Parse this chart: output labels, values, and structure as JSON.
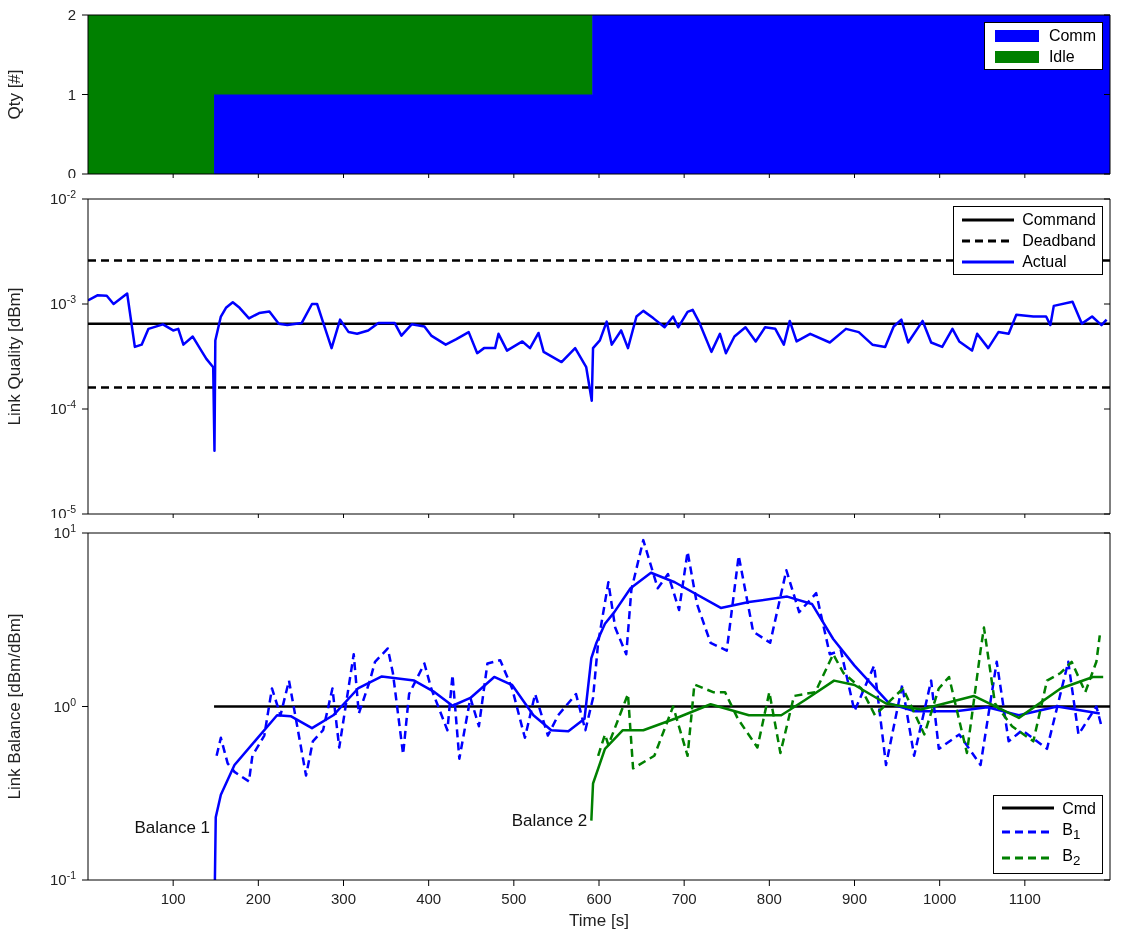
{
  "chart_data": [
    {
      "type": "area",
      "stacked": true,
      "ylabel": "Qty [#]",
      "x": [
        0,
        148,
        148,
        592,
        592,
        1200
      ],
      "xlim": [
        0,
        1200
      ],
      "xticks": [
        100,
        200,
        300,
        400,
        500,
        600,
        700,
        800,
        900,
        1000,
        1100
      ],
      "ylim": [
        0,
        2
      ],
      "yticks": [
        0,
        1,
        2
      ],
      "tick_labels": "y",
      "legend": "top right",
      "series": [
        {
          "name": "Comm",
          "color": "#0000ff",
          "values": [
            0,
            0,
            1,
            1,
            2,
            2
          ]
        },
        {
          "name": "Idle",
          "color": "#008000",
          "values": [
            2,
            2,
            1,
            1,
            null,
            null
          ]
        }
      ]
    },
    {
      "type": "line",
      "log": "y",
      "ylabel": "Link Quality [dBm]",
      "xlim": [
        0,
        1200
      ],
      "xticks": [
        100,
        200,
        300,
        400,
        500,
        600,
        700,
        800,
        900,
        1000,
        1100
      ],
      "ylim": [
        1e-05,
        0.01
      ],
      "yticks": [
        {
          "value": 1e-05,
          "label": "10$^{-5}$"
        },
        {
          "value": 0.0001,
          "label": "10$^{-4}$"
        },
        {
          "value": 0.001,
          "label": "10$^{-3}$"
        },
        {
          "value": 0.01,
          "label": "10$^{-2}$"
        }
      ],
      "tick_labels": "y",
      "legend": "top right",
      "series": [
        {
          "name": "Command",
          "color": "#000000",
          "line_style": "solid",
          "x": [
            0,
            1200
          ],
          "values": [
            0.00065,
            0.00065
          ]
        },
        {
          "name": "Deadband",
          "color": "#000000",
          "line_style": "dashed",
          "x": [
            0,
            1200
          ],
          "values": [
            0.0026,
            0.0026
          ]
        },
        {
          "color": "#000000",
          "line_style": "dashed",
          "x": [
            0,
            1200
          ],
          "values": [
            0.00016,
            0.00016
          ]
        },
        {
          "name": "Actual",
          "color": "#0000ff",
          "line_style": "solid",
          "x": [
            0,
            11,
            22,
            30,
            38,
            46,
            55,
            63,
            71,
            88,
            100,
            106,
            112,
            123,
            133,
            139,
            147,
            148.5,
            149.5,
            156,
            162,
            170,
            178,
            189,
            201,
            213,
            224,
            234,
            251,
            263,
            269,
            275,
            286,
            296,
            306,
            316,
            329,
            341,
            360,
            368,
            380,
            395,
            403,
            420,
            432,
            447,
            457,
            465,
            478,
            482,
            492,
            510,
            519,
            529,
            535,
            556,
            572,
            585,
            591.5,
            593,
            601,
            609,
            615,
            626,
            634,
            644,
            652,
            664,
            677,
            687,
            693,
            704,
            710,
            718,
            732,
            742,
            749,
            759,
            772,
            784,
            795,
            807,
            817,
            824,
            832,
            848,
            871,
            890,
            905,
            921,
            936,
            946,
            955,
            963,
            980,
            990,
            1003,
            1015,
            1023,
            1038,
            1044,
            1057,
            1069,
            1081,
            1090,
            1110,
            1125,
            1130,
            1134,
            1156,
            1167,
            1179,
            1190,
            1196
          ],
          "values": [
            0.00108,
            0.00121,
            0.0012,
            0.001,
            0.00112,
            0.00126,
            0.00039,
            0.00041,
            0.00058,
            0.00064,
            0.00056,
            0.00058,
            0.00041,
            0.00049,
            0.00036,
            0.0003,
            0.00025,
            4e-05,
            0.00045,
            0.00076,
            0.00092,
            0.00104,
            0.00092,
            0.00073,
            0.00082,
            0.00085,
            0.00065,
            0.00063,
            0.00066,
            0.001,
            0.001,
            0.00071,
            0.00038,
            0.00071,
            0.00054,
            0.00052,
            0.00056,
            0.00066,
            0.00066,
            0.0005,
            0.00064,
            0.00061,
            0.0005,
            0.00041,
            0.00046,
            0.00054,
            0.00034,
            0.00038,
            0.00038,
            0.00052,
            0.00036,
            0.00044,
            0.00038,
            0.00053,
            0.00035,
            0.00028,
            0.00038,
            0.00025,
            0.00012,
            0.00038,
            0.00045,
            0.00068,
            0.00041,
            0.00056,
            0.00038,
            0.00076,
            0.00086,
            0.00073,
            0.0006,
            0.00076,
            0.0006,
            0.00084,
            0.00088,
            0.00066,
            0.00035,
            0.00052,
            0.00034,
            0.00049,
            0.0006,
            0.00044,
            0.0006,
            0.00058,
            0.00041,
            0.00069,
            0.00044,
            0.00052,
            0.00043,
            0.00058,
            0.00054,
            0.00041,
            0.00039,
            0.00061,
            0.00071,
            0.00043,
            0.00069,
            0.00043,
            0.00039,
            0.00058,
            0.00044,
            0.00036,
            0.00052,
            0.00038,
            0.00054,
            0.00052,
            0.00079,
            0.00076,
            0.00076,
            0.00063,
            0.00096,
            0.00105,
            0.00065,
            0.00076,
            0.00063,
            0.00071
          ]
        }
      ]
    },
    {
      "type": "line",
      "log": "y",
      "xlabel": "Time [s]",
      "ylabel": "Link Balance [dBm/dBm]",
      "xlim": [
        0,
        1200
      ],
      "xticks": [
        100,
        200,
        300,
        400,
        500,
        600,
        700,
        800,
        900,
        1000,
        1100
      ],
      "ylim": [
        0.1,
        10
      ],
      "yticks": [
        {
          "value": 0.1,
          "label": "10$^{-1}$"
        },
        {
          "value": 1,
          "label": "10$^{0}$"
        },
        {
          "value": 10,
          "label": "10$^{1}$"
        }
      ],
      "legend": "bottom right",
      "annotations": [
        {
          "text": "Balance 1",
          "x": 148,
          "y": 0.2
        },
        {
          "text": "Balance 2",
          "x": 591,
          "y": 0.22
        }
      ],
      "series": [
        {
          "name": "Cmd",
          "color": "#000000",
          "line_style": "solid",
          "x": [
            148,
            1200
          ],
          "values": [
            1,
            1
          ]
        },
        {
          "name": "B$_{1}$",
          "color": "#0000ff",
          "line_style": "dashed",
          "x": [
            151,
            156,
            164,
            172,
            189,
            193,
            207,
            216,
            226,
            236,
            243,
            256,
            264,
            276,
            287,
            295,
            312,
            318,
            331,
            337,
            352,
            358,
            370,
            377,
            395,
            403,
            422,
            428,
            436,
            449,
            459,
            469,
            484,
            498,
            513,
            525,
            540,
            552,
            573,
            584,
            593,
            599,
            611,
            619,
            632,
            638,
            652,
            669,
            681,
            694,
            704,
            715,
            731,
            750,
            764,
            781,
            801,
            820,
            835,
            855,
            871,
            884,
            900,
            923,
            937,
            956,
            970,
            990,
            999,
            1023,
            1048,
            1067,
            1081,
            1097,
            1126,
            1151,
            1163,
            1184,
            1190
          ],
          "values": [
            0.52,
            0.66,
            0.47,
            0.42,
            0.37,
            0.52,
            0.68,
            1.27,
            0.89,
            1.41,
            0.91,
            0.4,
            0.63,
            0.73,
            1.27,
            0.58,
            2.0,
            0.91,
            1.41,
            1.81,
            2.16,
            1.56,
            0.53,
            1.18,
            1.77,
            1.27,
            0.73,
            1.52,
            0.5,
            1.12,
            0.77,
            1.77,
            1.85,
            1.27,
            0.66,
            1.18,
            0.68,
            0.89,
            1.18,
            0.73,
            1.12,
            2.33,
            5.2,
            2.85,
            2.0,
            4.7,
            9.1,
            4.8,
            5.8,
            3.6,
            7.8,
            3.9,
            2.33,
            2.1,
            7.4,
            2.7,
            2.33,
            6.1,
            3.5,
            4.5,
            2.0,
            2.1,
            0.94,
            1.72,
            0.46,
            1.33,
            0.52,
            1.41,
            0.57,
            0.69,
            0.46,
            1.81,
            0.63,
            0.73,
            0.57,
            1.81,
            0.69,
            1.0,
            0.77
          ]
        },
        {
          "color": "#0000ff",
          "line_style": "solid",
          "x": [
            149,
            150,
            156,
            172,
            197,
            222,
            238,
            263,
            288,
            317,
            345,
            383,
            407,
            428,
            449,
            477,
            498,
            523,
            544,
            564,
            583,
            591,
            597,
            607,
            618,
            637,
            661,
            689,
            743,
            776,
            821,
            850,
            875,
            900,
            941,
            970,
            1019,
            1056,
            1093,
            1138,
            1188
          ],
          "values": [
            0.1,
            0.23,
            0.31,
            0.46,
            0.64,
            0.89,
            0.88,
            0.75,
            0.89,
            1.27,
            1.49,
            1.41,
            1.21,
            1.01,
            1.12,
            1.48,
            1.33,
            0.89,
            0.73,
            0.72,
            0.85,
            1.9,
            2.33,
            3.0,
            3.5,
            4.8,
            5.9,
            5.2,
            3.7,
            4.0,
            4.3,
            3.9,
            2.45,
            1.72,
            1.04,
            0.94,
            0.94,
            0.99,
            0.89,
            1.0,
            0.91
          ]
        },
        {
          "name": "B$_{2}$",
          "color": "#008000",
          "line_style": "dashed",
          "x": [
            599,
            607,
            611,
            634,
            640,
            665,
            687,
            704,
            712,
            734,
            748,
            763,
            786,
            800,
            813,
            829,
            854,
            875,
            887,
            908,
            924,
            957,
            982,
            999,
            1011,
            1032,
            1048,
            1052,
            1065,
            1085,
            1110,
            1126,
            1142,
            1155,
            1171,
            1184,
            1188
          ],
          "values": [
            0.52,
            0.69,
            0.6,
            1.18,
            0.44,
            0.52,
            1.0,
            0.52,
            1.34,
            1.21,
            1.21,
            0.85,
            0.58,
            1.21,
            0.54,
            1.15,
            1.21,
            2.0,
            1.56,
            1.27,
            0.89,
            1.27,
            0.69,
            1.27,
            1.48,
            0.54,
            2.1,
            2.85,
            1.04,
            0.77,
            0.63,
            1.41,
            1.56,
            1.81,
            1.21,
            1.81,
            2.57
          ]
        },
        {
          "color": "#008000",
          "line_style": "solid",
          "x": [
            591,
            593,
            607,
            628,
            652,
            689,
            731,
            776,
            814,
            842,
            876,
            900,
            937,
            978,
            1040,
            1093,
            1142,
            1180,
            1192
          ],
          "values": [
            0.22,
            0.36,
            0.57,
            0.73,
            0.73,
            0.85,
            1.03,
            0.89,
            0.89,
            1.09,
            1.41,
            1.33,
            1.04,
            0.96,
            1.15,
            0.86,
            1.27,
            1.48,
            1.48
          ]
        }
      ]
    }
  ]
}
